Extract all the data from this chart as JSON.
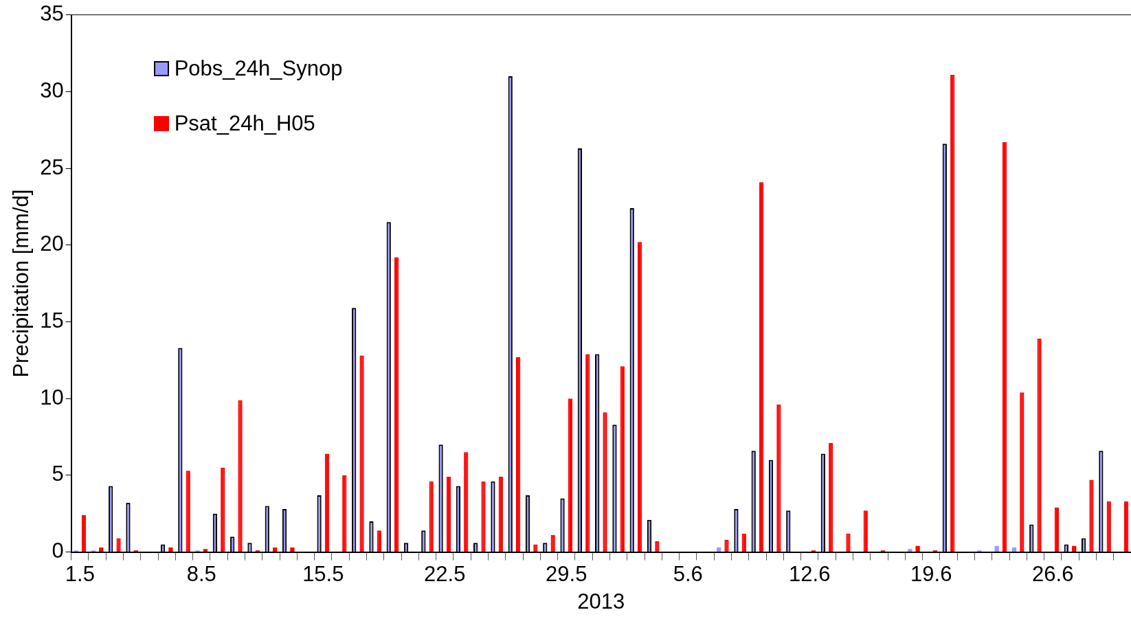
{
  "chart_data": {
    "type": "bar",
    "xlabel": "2013",
    "ylabel": "Precipitation [mm/d]",
    "categories": [
      "1.5",
      null,
      null,
      null,
      null,
      null,
      null,
      "8.5",
      null,
      null,
      null,
      null,
      null,
      null,
      "15.5",
      null,
      null,
      null,
      null,
      null,
      null,
      "22.5",
      null,
      null,
      null,
      null,
      null,
      null,
      "29.5",
      null,
      null,
      null,
      null,
      null,
      null,
      "5.6",
      null,
      null,
      null,
      null,
      null,
      null,
      "12.6",
      null,
      null,
      null,
      null,
      null,
      null,
      "19.6",
      null,
      null,
      null,
      null,
      null,
      null,
      "26.6",
      null,
      null,
      null,
      null
    ],
    "series": [
      {
        "name": "Pobs_24h_Synop",
        "color": "#9999ff",
        "values": [
          0.1,
          0.1,
          4.3,
          3.2,
          0,
          0.5,
          13.3,
          0.1,
          2.5,
          1.0,
          0.6,
          3.0,
          2.8,
          0,
          3.7,
          0,
          15.9,
          2.0,
          21.5,
          0.6,
          1.4,
          7.0,
          4.3,
          0.6,
          4.6,
          31.0,
          3.7,
          0.6,
          3.5,
          26.3,
          12.9,
          8.3,
          22.4,
          2.1,
          0,
          0,
          0,
          0.3,
          2.8,
          6.6,
          6.0,
          2.7,
          0,
          6.4,
          0,
          0,
          0,
          0,
          0.2,
          0,
          26.6,
          0,
          0.1,
          0.4,
          0.3,
          1.8,
          0,
          0.5,
          0.9,
          6.6,
          0
        ]
      },
      {
        "name": "Psat_24h_H05",
        "color": "#ff0000",
        "values": [
          2.4,
          0.3,
          0.9,
          0.1,
          0,
          0.3,
          5.3,
          0.2,
          5.5,
          9.9,
          0.1,
          0.3,
          0.3,
          0,
          6.4,
          5.0,
          12.8,
          1.4,
          19.2,
          0,
          4.6,
          4.9,
          6.5,
          4.6,
          4.9,
          12.7,
          0.5,
          1.1,
          10.0,
          12.9,
          9.1,
          12.1,
          20.2,
          0.7,
          0,
          0,
          0,
          0.8,
          1.2,
          24.1,
          9.6,
          0,
          0.1,
          7.1,
          1.2,
          2.7,
          0.1,
          0,
          0.4,
          0.1,
          31.1,
          0,
          0,
          26.7,
          10.4,
          13.9,
          2.9,
          0.4,
          4.7,
          3.3,
          3.3
        ]
      }
    ],
    "ylim": [
      0,
      35
    ],
    "yticks": [
      0,
      5,
      10,
      15,
      20,
      25,
      30,
      35
    ],
    "grid": false,
    "legend": "top left"
  }
}
